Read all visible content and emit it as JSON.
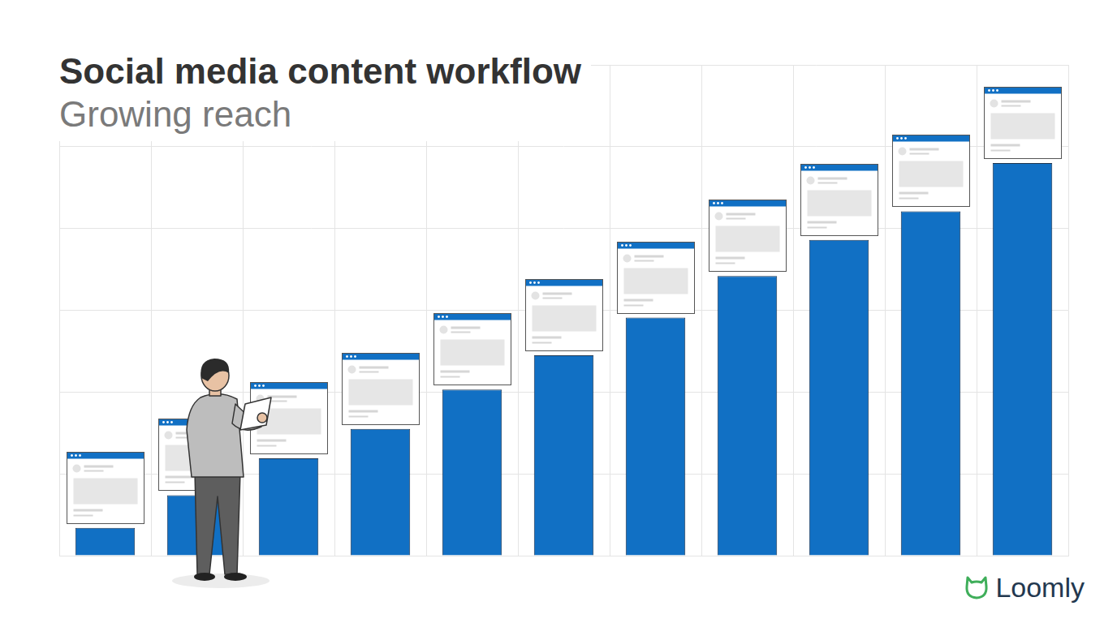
{
  "chart_data": {
    "type": "bar",
    "title": "Social media content workflow",
    "subtitle": "Growing reach",
    "annotations": [
      "Loomly"
    ],
    "categories": [
      null,
      null,
      null,
      null,
      null,
      null,
      null,
      null,
      null,
      null,
      null
    ],
    "values": [
      0.34,
      0.74,
      1.19,
      1.55,
      2.03,
      2.45,
      2.91,
      3.42,
      3.86,
      4.21,
      4.8
    ],
    "color": "#1170c4",
    "ylim": [
      0,
      6
    ],
    "yticks": [
      0,
      1,
      2,
      3,
      4,
      5,
      6
    ],
    "grid": true,
    "tick_labels": false
  }
}
